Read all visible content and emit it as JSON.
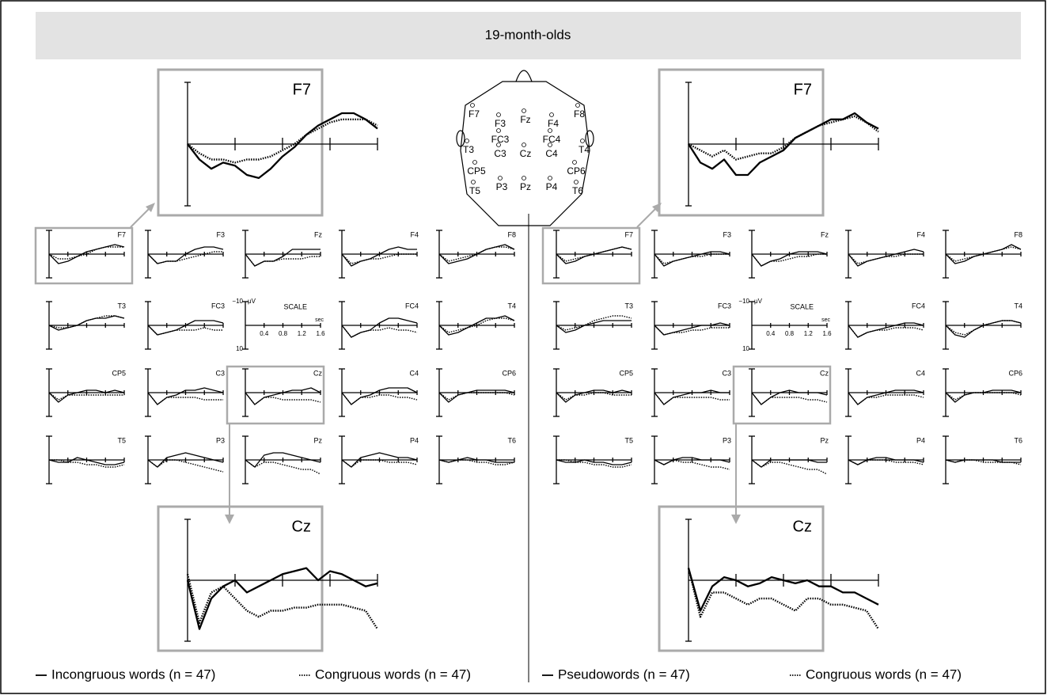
{
  "title": "19-month-olds",
  "time": [
    0,
    0.2,
    0.4,
    0.6,
    0.8,
    1.0,
    1.2,
    1.4,
    1.6
  ],
  "time_fine": [
    0,
    0.1,
    0.2,
    0.3,
    0.4,
    0.5,
    0.6,
    0.7,
    0.8,
    0.9,
    1.0,
    1.1,
    1.2,
    1.3,
    1.4,
    1.5,
    1.6
  ],
  "scale": {
    "title": "SCALE",
    "y_unit": "μV",
    "x_unit": "sec",
    "y_top": {
      "value": -10,
      "label": "−10"
    },
    "y_bottom": 10,
    "xticks": [
      0.4,
      0.8,
      1.2,
      1.6
    ]
  },
  "electrodes": [
    "F7",
    "F3",
    "Fz",
    "F4",
    "F8",
    "FC3",
    "FC4",
    "T3",
    "C3",
    "Cz",
    "C4",
    "T4",
    "CP5",
    "CP6",
    "T5",
    "P3",
    "Pz",
    "P4",
    "T6"
  ],
  "sides": [
    {
      "legend": [
        {
          "name": "Incongruous words (n = 47)",
          "style": "solid"
        },
        {
          "name": "Congruous words (n = 47)",
          "style": "dotted"
        }
      ],
      "panels": [
        {
          "label": "F7",
          "solid": [
            0,
            4,
            3,
            1,
            -1,
            -2,
            -3,
            -4,
            -3
          ],
          "dotted": [
            0,
            2,
            2,
            1,
            0,
            -2,
            -3,
            -3,
            -3
          ]
        },
        {
          "label": "F3",
          "solid": [
            0,
            4,
            3,
            3,
            0,
            -2,
            -3,
            -3,
            -2
          ],
          "dotted": [
            0,
            4,
            3,
            3,
            2,
            1,
            0,
            -1,
            -1
          ]
        },
        {
          "label": "Fz",
          "solid": [
            0,
            5,
            3,
            3,
            1,
            -2,
            -2,
            -2,
            -2
          ],
          "dotted": [
            0,
            5,
            3,
            3,
            2,
            2,
            2,
            1,
            1
          ]
        },
        {
          "label": "F4",
          "solid": [
            0,
            5,
            3,
            2,
            0,
            -2,
            -3,
            -2,
            -2
          ],
          "dotted": [
            0,
            4,
            3,
            2,
            2,
            1,
            0,
            0,
            0
          ]
        },
        {
          "label": "F8",
          "solid": [
            0,
            4,
            3,
            2,
            0,
            -2,
            -3,
            -4,
            -2
          ],
          "dotted": [
            0,
            3,
            2,
            1,
            0,
            -2,
            -3,
            -3,
            -2
          ]
        },
        {
          "label": "T3",
          "solid": [
            0,
            2,
            1,
            0,
            -2,
            -3,
            -3,
            -4,
            -3
          ],
          "dotted": [
            0,
            1,
            1,
            0,
            -2,
            -3,
            -4,
            -4,
            -3
          ]
        },
        {
          "label": "FC3",
          "solid": [
            0,
            4,
            3,
            2,
            0,
            -2,
            -2,
            -2,
            -1
          ],
          "dotted": [
            0,
            4,
            3,
            2,
            2,
            2,
            1,
            2,
            2
          ]
        },
        {
          "label": "FC4",
          "solid": [
            0,
            5,
            3,
            2,
            -1,
            -3,
            -3,
            -2,
            -1
          ],
          "dotted": [
            0,
            5,
            3,
            2,
            2,
            1,
            2,
            2,
            3
          ]
        },
        {
          "label": "T4",
          "solid": [
            0,
            4,
            3,
            1,
            -1,
            -3,
            -3,
            -4,
            -2
          ],
          "dotted": [
            0,
            3,
            2,
            1,
            0,
            -2,
            -3,
            -3,
            -2
          ]
        },
        {
          "label": "CP5",
          "solid": [
            0,
            4,
            1,
            0,
            -1,
            -1,
            0,
            -1,
            0
          ],
          "dotted": [
            0,
            3,
            1,
            1,
            1,
            1,
            1,
            1,
            1
          ]
        },
        {
          "label": "C3",
          "solid": [
            0,
            5,
            2,
            1,
            -1,
            -1,
            -2,
            -1,
            0
          ],
          "dotted": [
            0,
            5,
            2,
            2,
            2,
            2,
            3,
            3,
            3
          ]
        },
        {
          "label": "Cz",
          "solid": [
            0,
            5,
            2,
            1,
            0,
            -1,
            -1,
            -2,
            0
          ],
          "dotted": [
            0,
            5,
            2,
            2,
            3,
            3,
            3,
            3,
            4
          ]
        },
        {
          "label": "C4",
          "solid": [
            0,
            5,
            2,
            1,
            -1,
            -2,
            -2,
            -2,
            0
          ],
          "dotted": [
            0,
            5,
            2,
            2,
            1,
            1,
            2,
            2,
            3
          ]
        },
        {
          "label": "CP6",
          "solid": [
            0,
            4,
            1,
            0,
            -1,
            -1,
            -1,
            -1,
            0
          ],
          "dotted": [
            0,
            3,
            1,
            0,
            0,
            0,
            0,
            0,
            1
          ]
        },
        {
          "label": "T5",
          "solid": [
            0,
            1,
            1,
            -1,
            0,
            1,
            2,
            2,
            1
          ],
          "dotted": [
            0,
            0,
            1,
            1,
            2,
            2,
            3,
            3,
            2
          ]
        },
        {
          "label": "P3",
          "solid": [
            0,
            3,
            -1,
            -2,
            -3,
            -2,
            -1,
            0,
            1
          ],
          "dotted": [
            0,
            3,
            0,
            0,
            1,
            2,
            3,
            4,
            5
          ]
        },
        {
          "label": "Pz",
          "solid": [
            0,
            3,
            -2,
            -3,
            -3,
            -2,
            -1,
            0,
            1
          ],
          "dotted": [
            0,
            3,
            1,
            1,
            2,
            3,
            4,
            4,
            6
          ]
        },
        {
          "label": "P4",
          "solid": [
            0,
            3,
            -1,
            -2,
            -3,
            -2,
            -1,
            -1,
            0
          ],
          "dotted": [
            0,
            3,
            0,
            0,
            0,
            1,
            1,
            1,
            2
          ]
        },
        {
          "label": "T6",
          "solid": [
            0,
            1,
            0,
            -1,
            0,
            0,
            1,
            1,
            1
          ],
          "dotted": [
            0,
            1,
            0,
            0,
            1,
            1,
            2,
            2,
            1
          ]
        }
      ],
      "zoom": [
        {
          "label": "F7",
          "solid": [
            0,
            2.5,
            4,
            3,
            3.5,
            5,
            5.5,
            4,
            2,
            0.5,
            -1.5,
            -3,
            -4,
            -5,
            -5,
            -4,
            -2.5
          ],
          "dotted": [
            0,
            1.5,
            2.5,
            2.5,
            3,
            2.5,
            2.5,
            2,
            1,
            0,
            -1.5,
            -2.5,
            -3.5,
            -4,
            -4,
            -4,
            -3
          ]
        },
        {
          "label": "Cz",
          "solid": [
            0,
            8,
            3,
            1,
            0,
            2,
            1,
            0,
            -1,
            -1.5,
            -2,
            0,
            -1.5,
            -1,
            0,
            1,
            0.5
          ],
          "dotted": [
            -1,
            7,
            2,
            1,
            3,
            5,
            6,
            5,
            5,
            4.5,
            4.5,
            4,
            4,
            4,
            4.5,
            5,
            8
          ]
        }
      ]
    },
    {
      "legend": [
        {
          "name": "Pseudowords (n = 47)",
          "style": "solid"
        },
        {
          "name": "Congruous words (n = 47)",
          "style": "dotted"
        }
      ],
      "panels": [
        {
          "label": "F7",
          "solid": [
            0,
            4,
            3,
            1,
            0,
            -1,
            -2,
            -3,
            -2
          ],
          "dotted": [
            0,
            3,
            2,
            1,
            0,
            -1,
            -2,
            -3,
            -2
          ]
        },
        {
          "label": "F3",
          "solid": [
            0,
            5,
            3,
            2,
            1,
            0,
            -1,
            -1,
            0
          ],
          "dotted": [
            0,
            4,
            3,
            2,
            1,
            1,
            0,
            0,
            0
          ]
        },
        {
          "label": "Fz",
          "solid": [
            0,
            5,
            3,
            2,
            0,
            -1,
            -1,
            -1,
            0
          ],
          "dotted": [
            0,
            5,
            3,
            3,
            2,
            1,
            1,
            0,
            0
          ]
        },
        {
          "label": "F4",
          "solid": [
            0,
            5,
            3,
            2,
            1,
            0,
            -1,
            -2,
            -1
          ],
          "dotted": [
            0,
            4,
            3,
            2,
            1,
            1,
            0,
            0,
            0
          ]
        },
        {
          "label": "F8",
          "solid": [
            0,
            4,
            3,
            1,
            0,
            -1,
            -2,
            -4,
            -2
          ],
          "dotted": [
            0,
            3,
            2,
            1,
            0,
            -1,
            -2,
            -3,
            -2
          ]
        },
        {
          "label": "T3",
          "solid": [
            0,
            3,
            2,
            0,
            -1,
            -2,
            -2,
            -2,
            -2
          ],
          "dotted": [
            0,
            2,
            1,
            0,
            -2,
            -3,
            -4,
            -4,
            -3
          ]
        },
        {
          "label": "FC3",
          "solid": [
            0,
            4,
            3,
            2,
            1,
            0,
            0,
            -1,
            0
          ],
          "dotted": [
            0,
            4,
            3,
            3,
            2,
            2,
            1,
            1,
            1
          ]
        },
        {
          "label": "FC4",
          "solid": [
            0,
            5,
            3,
            2,
            1,
            0,
            -1,
            -1,
            0
          ],
          "dotted": [
            0,
            5,
            3,
            2,
            2,
            1,
            1,
            1,
            2
          ]
        },
        {
          "label": "T4",
          "solid": [
            0,
            4,
            5,
            2,
            0,
            -1,
            -2,
            -2,
            -1
          ],
          "dotted": [
            0,
            3,
            4,
            2,
            0,
            -1,
            -2,
            -2,
            -1
          ]
        },
        {
          "label": "CP5",
          "solid": [
            0,
            4,
            1,
            0,
            -1,
            -1,
            0,
            -1,
            0
          ],
          "dotted": [
            0,
            3,
            1,
            1,
            0,
            0,
            1,
            1,
            1
          ]
        },
        {
          "label": "C3",
          "solid": [
            0,
            5,
            2,
            1,
            0,
            0,
            -1,
            0,
            0
          ],
          "dotted": [
            0,
            5,
            2,
            2,
            2,
            2,
            2,
            3,
            3
          ]
        },
        {
          "label": "Cz",
          "solid": [
            0,
            5,
            2,
            0,
            -1,
            0,
            0,
            0,
            1
          ],
          "dotted": [
            0,
            5,
            2,
            2,
            2,
            2,
            3,
            3,
            4
          ]
        },
        {
          "label": "C4",
          "solid": [
            0,
            5,
            2,
            1,
            0,
            -1,
            -1,
            -1,
            0
          ],
          "dotted": [
            0,
            5,
            2,
            2,
            1,
            1,
            1,
            1,
            2
          ]
        },
        {
          "label": "CP6",
          "solid": [
            0,
            4,
            1,
            0,
            0,
            -1,
            -1,
            -1,
            0
          ],
          "dotted": [
            0,
            3,
            1,
            0,
            0,
            0,
            0,
            0,
            1
          ]
        },
        {
          "label": "T5",
          "solid": [
            0,
            1,
            1,
            0,
            1,
            1,
            2,
            2,
            1
          ],
          "dotted": [
            0,
            0,
            1,
            1,
            2,
            2,
            3,
            3,
            2
          ]
        },
        {
          "label": "P3",
          "solid": [
            0,
            2,
            0,
            -1,
            -1,
            0,
            0,
            0,
            1
          ],
          "dotted": [
            0,
            2,
            0,
            1,
            1,
            2,
            3,
            3,
            4
          ]
        },
        {
          "label": "Pz",
          "solid": [
            0,
            3,
            0,
            0,
            0,
            0,
            0,
            1,
            1
          ],
          "dotted": [
            0,
            3,
            1,
            1,
            2,
            3,
            4,
            4,
            6
          ]
        },
        {
          "label": "P4",
          "solid": [
            0,
            2,
            0,
            -1,
            -1,
            0,
            0,
            0,
            1
          ],
          "dotted": [
            0,
            2,
            0,
            0,
            0,
            1,
            1,
            1,
            2
          ]
        },
        {
          "label": "T6",
          "solid": [
            0,
            1,
            0,
            0,
            0,
            0,
            1,
            1,
            1
          ],
          "dotted": [
            0,
            1,
            0,
            0,
            1,
            1,
            1,
            1,
            2
          ]
        }
      ],
      "zoom": [
        {
          "label": "F7",
          "solid": [
            0,
            3,
            4,
            2.5,
            5,
            5,
            3,
            2,
            1,
            -1,
            -2,
            -3,
            -4,
            -4,
            -5,
            -3.5,
            -2.5
          ],
          "dotted": [
            0,
            1,
            2,
            1,
            2.5,
            2,
            1.5,
            1.5,
            0.5,
            -1,
            -2,
            -3,
            -3.5,
            -4,
            -4.5,
            -3.5,
            -2
          ]
        },
        {
          "label": "Cz",
          "solid": [
            -2,
            5,
            1,
            -0.5,
            0,
            1,
            0.5,
            -0.5,
            0,
            0.5,
            0,
            1,
            1,
            2,
            2,
            3,
            4
          ],
          "dotted": [
            -2,
            6,
            2,
            2,
            3,
            4,
            3,
            3,
            4,
            5,
            3,
            3,
            4,
            4,
            4.5,
            5,
            8
          ]
        }
      ]
    }
  ]
}
